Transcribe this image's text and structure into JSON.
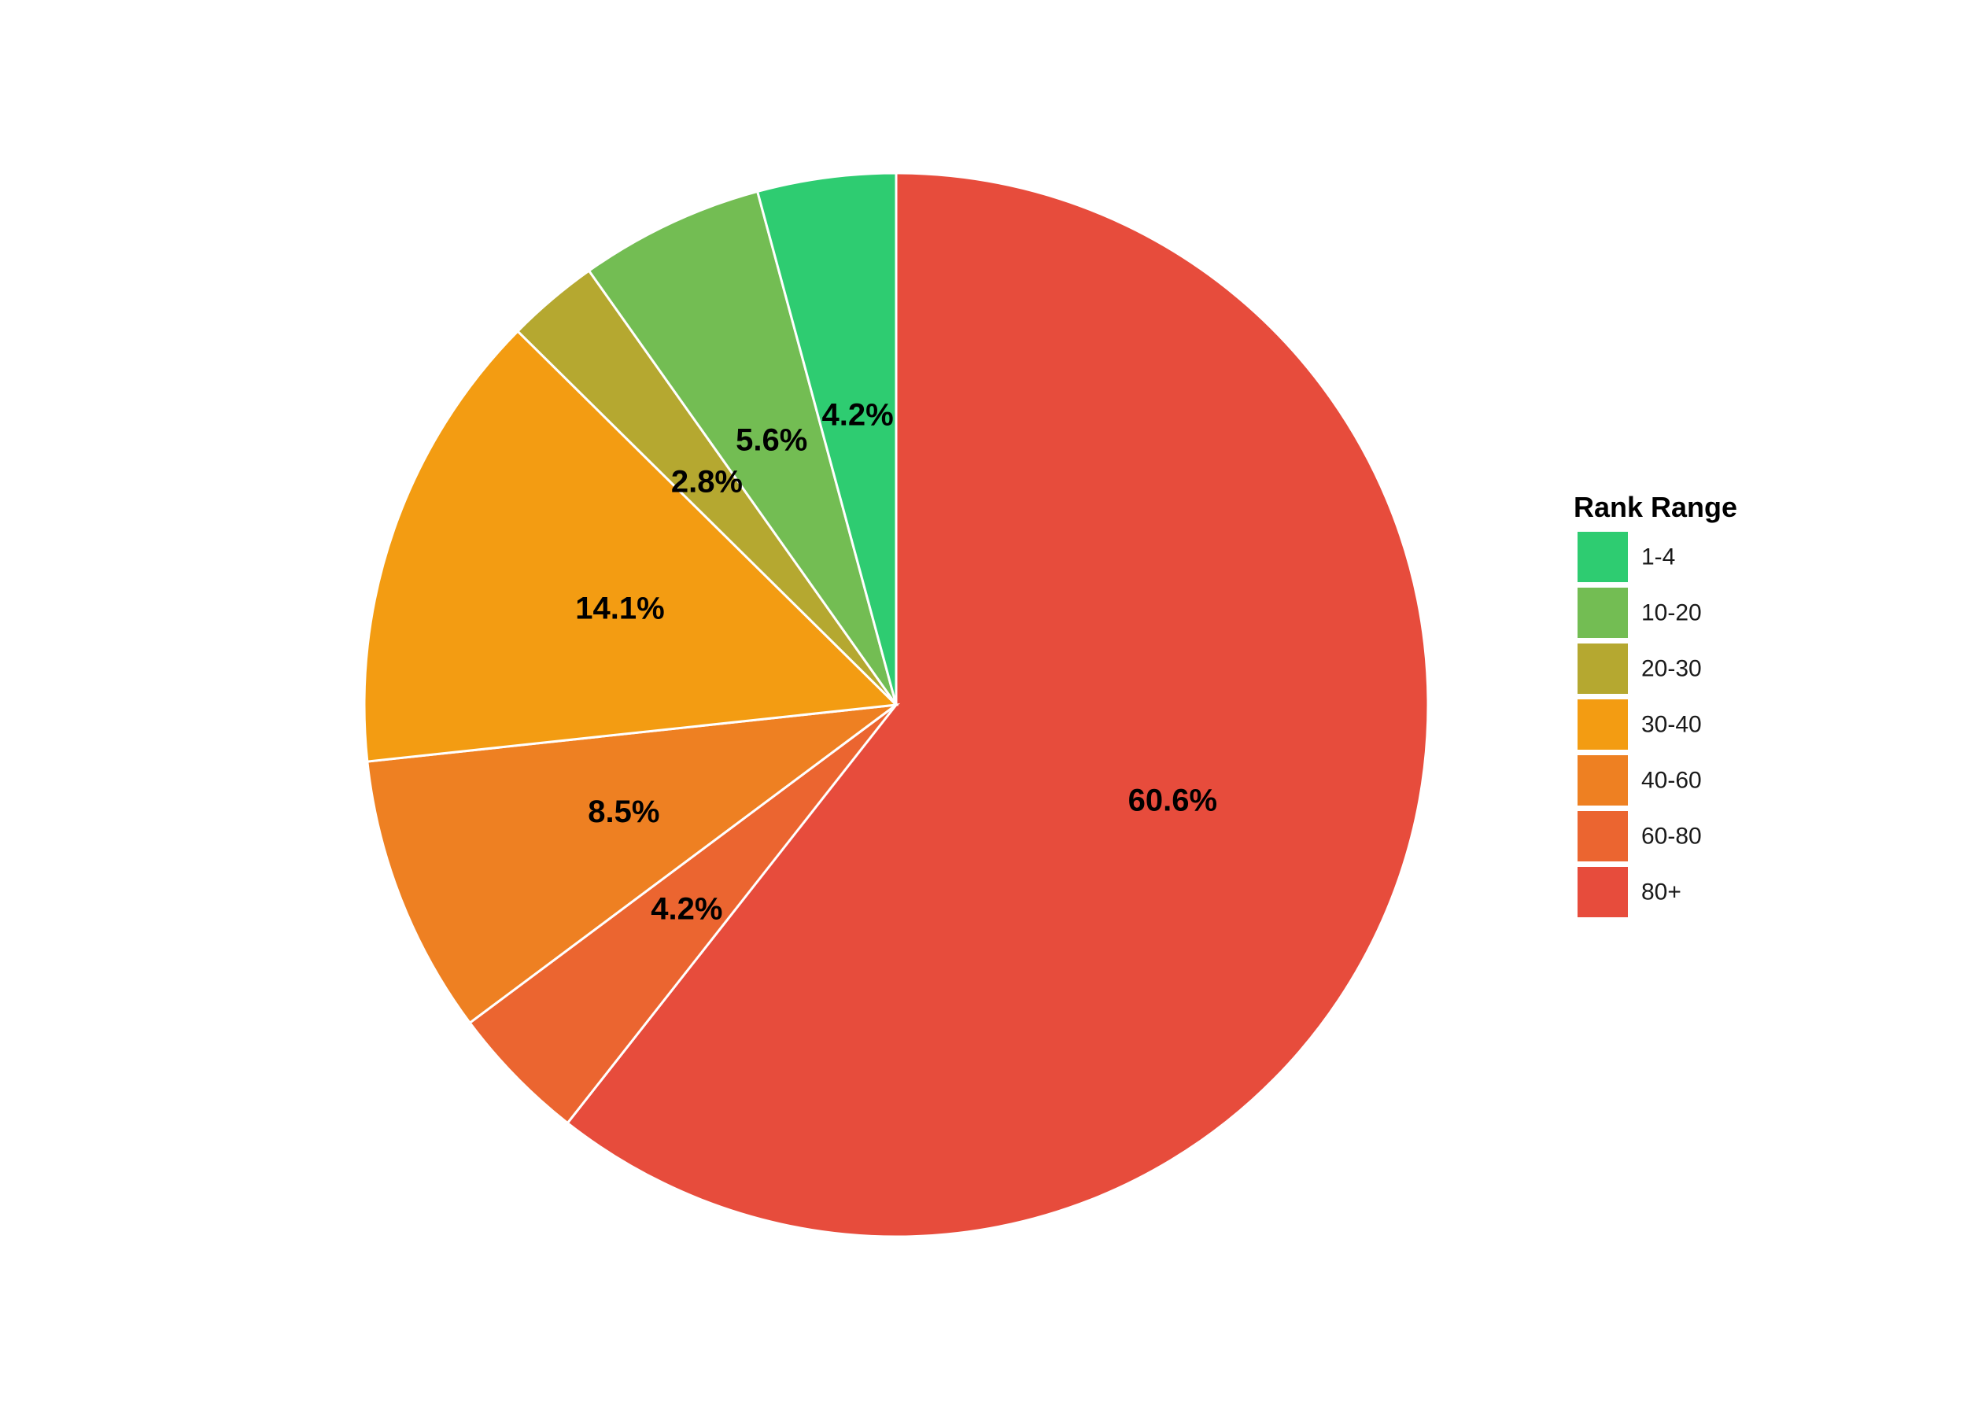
{
  "chart_data": {
    "type": "pie",
    "title": "",
    "legend_title": "Rank Range",
    "legend_position": "right",
    "start_angle_deg": 0,
    "direction": "clockwise",
    "slices": [
      {
        "label": "80+",
        "value": 60.6,
        "value_label": "60.6%",
        "color": "#E74C3C"
      },
      {
        "label": "60-80",
        "value": 4.2,
        "value_label": "4.2%",
        "color": "#EB6530"
      },
      {
        "label": "40-60",
        "value": 8.5,
        "value_label": "8.5%",
        "color": "#EE8022"
      },
      {
        "label": "30-40",
        "value": 14.1,
        "value_label": "14.1%",
        "color": "#F39C12"
      },
      {
        "label": "20-30",
        "value": 2.8,
        "value_label": "2.8%",
        "color": "#B5A830"
      },
      {
        "label": "10-20",
        "value": 5.6,
        "value_label": "5.6%",
        "color": "#73BD53"
      },
      {
        "label": "1-4",
        "value": 4.2,
        "value_label": "4.2%",
        "color": "#2ECC71"
      }
    ],
    "legend_order": [
      "1-4",
      "10-20",
      "20-30",
      "30-40",
      "40-60",
      "60-80",
      "80+"
    ]
  }
}
